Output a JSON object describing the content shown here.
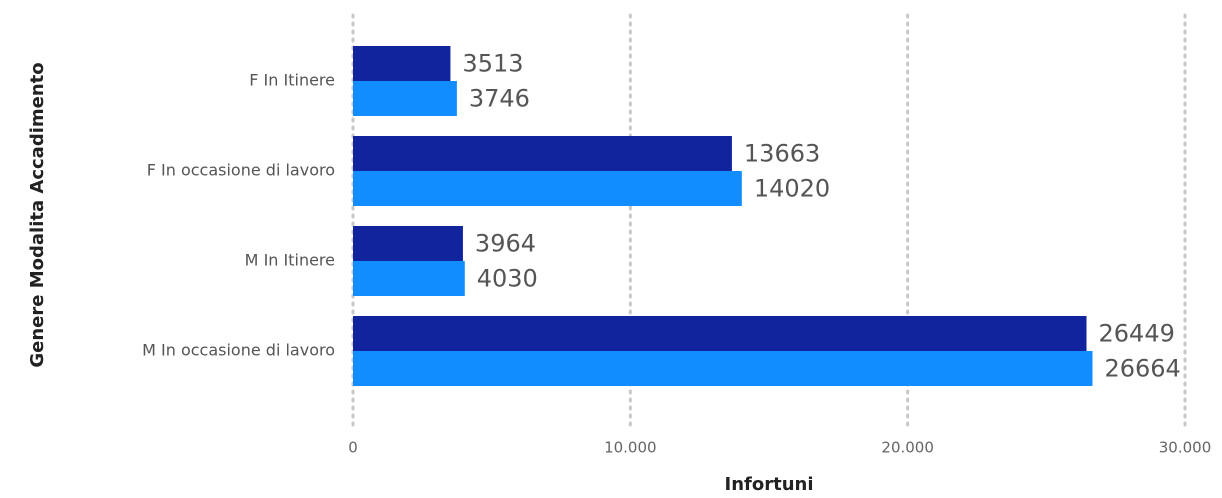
{
  "chart_data": {
    "type": "bar",
    "orientation": "horizontal",
    "xlabel": "Infortuni",
    "ylabel": "Genere Modalita Accadimento",
    "categories": [
      "F In Itinere",
      "F In occasione di lavoro",
      "M In Itinere",
      "M In occasione di lavoro"
    ],
    "series": [
      {
        "color": "#12239e",
        "values": [
          3513,
          13663,
          3964,
          26449
        ]
      },
      {
        "color": "#118dff",
        "values": [
          3746,
          14020,
          4030,
          26664
        ]
      }
    ],
    "xlim": [
      0,
      30000
    ],
    "xticks": [
      0,
      {
        "value": 10000,
        "label": "10.000"
      },
      {
        "value": 20000,
        "label": "20.000"
      },
      {
        "value": 30000,
        "label": "30.000"
      }
    ],
    "grid": true
  }
}
